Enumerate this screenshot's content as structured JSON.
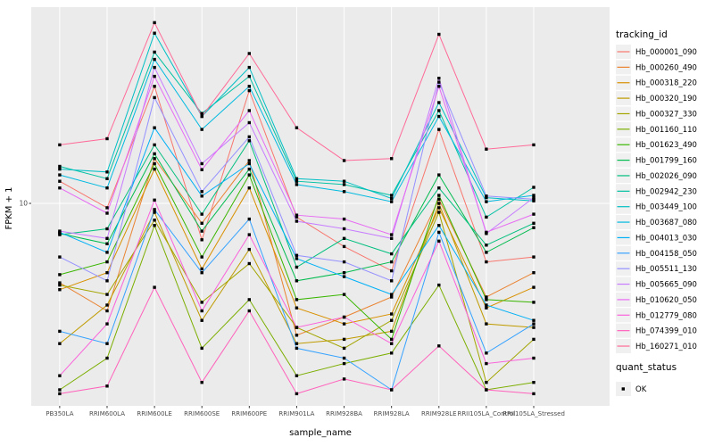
{
  "chart": {
    "y_axis_title": "FPKM + 1",
    "x_axis_title": "sample_name",
    "y_tick_label": "10",
    "panel_bg": "#EBEBEB",
    "gridline_color": "#FFFFFF",
    "axis_text_color": "#4D4D4D",
    "point_color": "#000000"
  },
  "legend": {
    "tracking_title": "tracking_id",
    "quant_title": "quant_status",
    "quant_ok_label": "OK",
    "key_bg": "#F0F0F0"
  },
  "chart_data": {
    "type": "line",
    "title": "",
    "xlabel": "sample_name",
    "ylabel": "FPKM + 1",
    "y_scale": "log10",
    "y_tick_labels": [
      "10"
    ],
    "ylim_approx": [
      1,
      110
    ],
    "grid": true,
    "legend_position": "right",
    "point_marker": {
      "shape": "small-black-square",
      "legend_group": "quant_status",
      "label": "OK"
    },
    "categories": [
      "PB350LA",
      "RRIM600LA",
      "RRIM600LE",
      "RRIM600SE",
      "RRIM600PE",
      "RRIM901LA",
      "RRIM928BA",
      "RRIM928LA",
      "RRIM928LE",
      "RRII105LA_Control",
      "RRII105LA_Stressed"
    ],
    "series": [
      {
        "name": "Hb_000001_090",
        "color": "#F8766D",
        "values": [
          13,
          9.5,
          40,
          6.5,
          38,
          8.5,
          6.0,
          4.5,
          24,
          5.0,
          5.3
        ]
      },
      {
        "name": "Hb_000260_490",
        "color": "#EA8331",
        "values": [
          3.9,
          2.8,
          17,
          7.9,
          16.6,
          2.1,
          2.6,
          3.3,
          10.5,
          3.3,
          4.4
        ]
      },
      {
        "name": "Hb_000318_220",
        "color": "#D89000",
        "values": [
          3.6,
          4.4,
          15,
          4.6,
          12,
          2.9,
          2.4,
          2.7,
          9.5,
          2.9,
          3.7
        ]
      },
      {
        "name": "Hb_000320_190",
        "color": "#C09B00",
        "values": [
          1.9,
          3.0,
          9.0,
          2.5,
          5.8,
          1.9,
          2.0,
          2.2,
          10,
          2.4,
          2.3
        ]
      },
      {
        "name": "Hb_000327_330",
        "color": "#A3A500",
        "values": [
          3.8,
          3.4,
          8.2,
          3.1,
          4.9,
          2.3,
          1.8,
          2.5,
          9.0,
          1.2,
          2.0
        ]
      },
      {
        "name": "Hb_001160_110",
        "color": "#7CAE00",
        "values": [
          1.1,
          1.6,
          7.7,
          1.8,
          3.2,
          1.3,
          1.5,
          1.7,
          3.8,
          1.1,
          1.2
        ]
      },
      {
        "name": "Hb_001623_490",
        "color": "#39B600",
        "values": [
          4.3,
          5.0,
          16,
          5.3,
          14,
          3.2,
          3.4,
          2.0,
          11,
          3.2,
          3.1
        ]
      },
      {
        "name": "Hb_001799_160",
        "color": "#00BB4E",
        "values": [
          7.0,
          6.2,
          18,
          7.2,
          15,
          4.0,
          4.4,
          5.0,
          14,
          5.6,
          7.5
        ]
      },
      {
        "name": "Hb_002026_090",
        "color": "#00BF7D",
        "values": [
          6.9,
          7.4,
          20,
          8.8,
          21,
          4.7,
          6.6,
          5.5,
          12,
          6.1,
          7.9
        ]
      },
      {
        "name": "Hb_002942_230",
        "color": "#00C1A3",
        "values": [
          15.5,
          13.4,
          60,
          29,
          45,
          13,
          12.5,
          11,
          30,
          8.5,
          12.1
        ]
      },
      {
        "name": "Hb_003449_100",
        "color": "#00BFC4",
        "values": [
          15,
          14.5,
          75,
          28,
          50,
          13.4,
          13,
          10.6,
          33,
          10.7,
          10.3
        ]
      },
      {
        "name": "Hb_003687_080",
        "color": "#00BAE0",
        "values": [
          14,
          12,
          55,
          24,
          40,
          12.5,
          11.5,
          10.2,
          28,
          10.2,
          11
        ]
      },
      {
        "name": "Hb_004013_030",
        "color": "#00B0F6",
        "values": [
          7.1,
          5.6,
          24.5,
          10.9,
          16,
          5.2,
          4.2,
          3.4,
          7.7,
          3.0,
          2.5
        ]
      },
      {
        "name": "Hb_004158_050",
        "color": "#35A2FF",
        "values": [
          2.2,
          1.9,
          9.3,
          4.4,
          8.3,
          1.8,
          1.6,
          1.1,
          7.1,
          1.7,
          2.4
        ]
      },
      {
        "name": "Hb_005511_130",
        "color": "#9590FF",
        "values": [
          5.3,
          4.0,
          35,
          11.5,
          22,
          5.4,
          5.0,
          4.0,
          42,
          10.9,
          10.5
        ]
      },
      {
        "name": "Hb_005665_090",
        "color": "#C77CFF",
        "values": [
          7.2,
          6.6,
          50,
          16,
          26,
          8.1,
          7.4,
          6.6,
          44,
          7.0,
          10.7
        ]
      },
      {
        "name": "Hb_010620_050",
        "color": "#E76BF3",
        "values": [
          12,
          8.9,
          45,
          14.9,
          30,
          8.7,
          8.3,
          6.9,
          40,
          7.1,
          8.8
        ]
      },
      {
        "name": "Hb_012779_080",
        "color": "#FA62DB",
        "values": [
          1.3,
          2.4,
          10.4,
          2.8,
          6.9,
          2.3,
          2.6,
          1.9,
          6.4,
          1.5,
          1.6
        ]
      },
      {
        "name": "Hb_074399_010",
        "color": "#FF62BC",
        "values": [
          1.05,
          1.15,
          3.7,
          1.2,
          2.8,
          1.05,
          1.25,
          1.1,
          1.85,
          1.1,
          1.05
        ]
      },
      {
        "name": "Hb_160271_010",
        "color": "#FF6A98",
        "values": [
          20,
          21.5,
          85,
          28,
          59,
          24.5,
          16.6,
          17,
          74,
          19,
          20
        ]
      }
    ]
  }
}
